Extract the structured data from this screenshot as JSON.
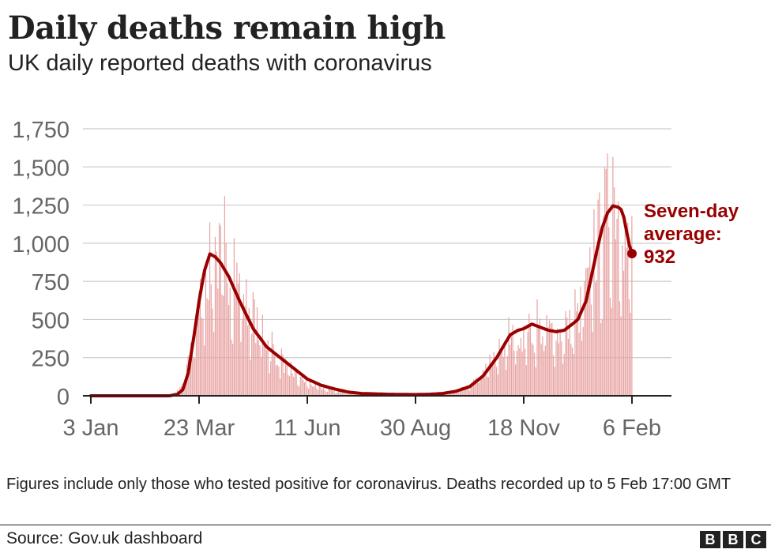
{
  "header": {
    "title": "Daily deaths remain high",
    "subtitle": "UK daily reported deaths with coronavirus"
  },
  "footer": {
    "note": "Figures include only those who tested positive for coronavirus. Deaths recorded up to 5 Feb 17:00 GMT",
    "source": "Source: Gov.uk dashboard",
    "logo_letters": [
      "B",
      "B",
      "C"
    ]
  },
  "colors": {
    "bar": "#e8a3a3",
    "line": "#990000",
    "grid": "#cccccc",
    "axis": "#222222",
    "tick_text": "#666666"
  },
  "chart_data": {
    "type": "bar",
    "title": "Daily deaths remain high",
    "subtitle": "UK daily reported deaths with coronavirus",
    "xlabel": "",
    "ylabel": "",
    "x_unit": "days since 3 Jan 2020",
    "x_range": [
      0,
      400
    ],
    "ylim": [
      0,
      1750
    ],
    "yticks": [
      0,
      250,
      500,
      750,
      1000,
      1250,
      1500,
      1750
    ],
    "ytick_labels": [
      "0",
      "250",
      "500",
      "750",
      "1,000",
      "1,250",
      "1,500",
      "1,750"
    ],
    "xticks": [
      0,
      80,
      160,
      240,
      320,
      400
    ],
    "xtick_labels": [
      "3 Jan",
      "23 Mar",
      "11 Jun",
      "30 Aug",
      "18 Nov",
      "6 Feb"
    ],
    "grid": true,
    "series": [
      {
        "name": "Daily reported deaths",
        "style": "bars",
        "anchors_x": [
          0,
          58,
          65,
          70,
          75,
          82,
          88,
          96,
          106,
          116,
          126,
          136,
          146,
          156,
          170,
          190,
          220,
          250,
          270,
          280,
          290,
          300,
          310,
          320,
          330,
          340,
          346,
          352,
          360,
          368,
          374,
          380,
          385,
          390,
          393,
          396,
          398,
          400
        ],
        "anchors_y": [
          0,
          0,
          30,
          100,
          350,
          650,
          850,
          880,
          780,
          580,
          400,
          280,
          170,
          100,
          50,
          20,
          10,
          10,
          25,
          60,
          140,
          250,
          360,
          400,
          430,
          410,
          400,
          420,
          500,
          720,
          950,
          1150,
          1300,
          1250,
          1100,
          960,
          900,
          850
        ]
      },
      {
        "name": "Seven-day average",
        "style": "line",
        "anchors_x": [
          0,
          58,
          64,
          68,
          72,
          76,
          80,
          84,
          88,
          92,
          96,
          102,
          110,
          120,
          130,
          140,
          150,
          160,
          170,
          180,
          190,
          200,
          220,
          240,
          250,
          260,
          270,
          280,
          290,
          300,
          306,
          310,
          316,
          320,
          326,
          332,
          338,
          344,
          350,
          356,
          360,
          366,
          370,
          374,
          378,
          382,
          386,
          390,
          392,
          394,
          396,
          398,
          400
        ],
        "anchors_y": [
          0,
          0,
          10,
          40,
          150,
          380,
          620,
          820,
          930,
          910,
          870,
          780,
          620,
          440,
          320,
          250,
          180,
          110,
          70,
          45,
          25,
          15,
          10,
          8,
          10,
          15,
          30,
          60,
          130,
          250,
          340,
          400,
          430,
          440,
          470,
          450,
          430,
          420,
          430,
          470,
          500,
          620,
          780,
          950,
          1100,
          1200,
          1245,
          1235,
          1220,
          1170,
          1080,
          990,
          932
        ]
      }
    ],
    "annotation": {
      "lines": [
        "Seven-day",
        "average:",
        "932"
      ],
      "x": 400,
      "value": 932
    }
  }
}
